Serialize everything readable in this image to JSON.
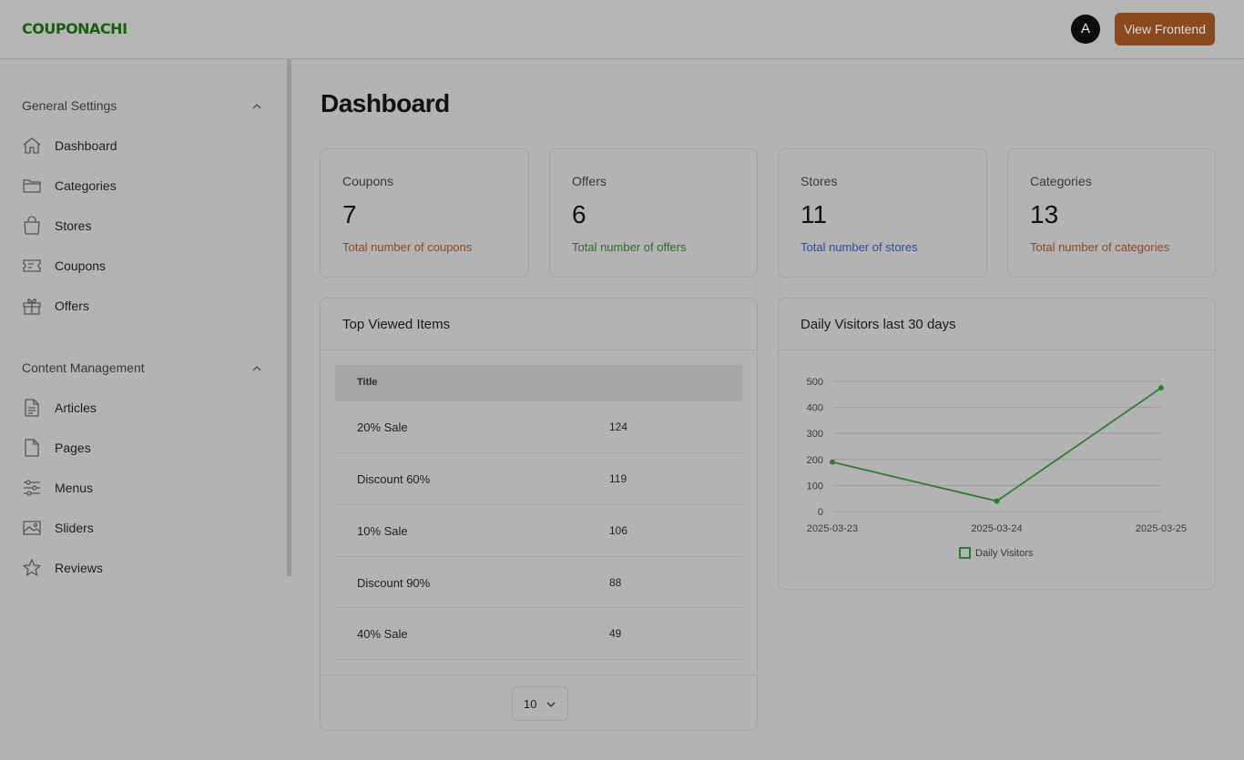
{
  "header": {
    "logo": "COUPONACHI",
    "avatar": "A",
    "view_frontend": "View Frontend"
  },
  "sidebar": {
    "sections": [
      {
        "title": "General Settings",
        "items": [
          {
            "label": "Dashboard",
            "icon": "home-icon"
          },
          {
            "label": "Categories",
            "icon": "folder-icon"
          },
          {
            "label": "Stores",
            "icon": "shopping-bag-icon"
          },
          {
            "label": "Coupons",
            "icon": "ticket-icon"
          },
          {
            "label": "Offers",
            "icon": "gift-icon"
          }
        ]
      },
      {
        "title": "Content Management",
        "items": [
          {
            "label": "Articles",
            "icon": "document-icon"
          },
          {
            "label": "Pages",
            "icon": "page-icon"
          },
          {
            "label": "Menus",
            "icon": "sliders-icon"
          },
          {
            "label": "Sliders",
            "icon": "image-icon"
          },
          {
            "label": "Reviews",
            "icon": "star-icon"
          }
        ]
      }
    ]
  },
  "main": {
    "title": "Dashboard",
    "stats": [
      {
        "label": "Coupons",
        "value": "7",
        "desc": "Total number of coupons",
        "color": "#8a4a1e"
      },
      {
        "label": "Offers",
        "value": "6",
        "desc": "Total number of offers",
        "color": "#2c6e2c"
      },
      {
        "label": "Stores",
        "value": "11",
        "desc": "Total number of stores",
        "color": "#2c4aa6"
      },
      {
        "label": "Categories",
        "value": "13",
        "desc": "Total number of categories",
        "color": "#8a4a1e"
      }
    ],
    "top_viewed": {
      "title": "Top Viewed Items",
      "column": "Title",
      "rows": [
        {
          "title": "20% Sale",
          "views": "124"
        },
        {
          "title": "Discount 60%",
          "views": "119"
        },
        {
          "title": "10% Sale",
          "views": "106"
        },
        {
          "title": "Discount 90%",
          "views": "88"
        },
        {
          "title": "40% Sale",
          "views": "49"
        }
      ],
      "page_size": "10"
    },
    "visitors": {
      "title": "Daily Visitors last 30 days"
    }
  },
  "chart_data": {
    "type": "line",
    "title": "",
    "x": [
      "2025-03-23",
      "2025-03-24",
      "2025-03-25"
    ],
    "series": [
      {
        "name": "Daily Visitors",
        "values": [
          190,
          40,
          475
        ]
      }
    ],
    "ylim": [
      0,
      500
    ],
    "yticks": [
      0,
      100,
      200,
      300,
      400,
      500
    ],
    "grid": true,
    "legend": "bottom",
    "color": "#2e7d2e"
  }
}
